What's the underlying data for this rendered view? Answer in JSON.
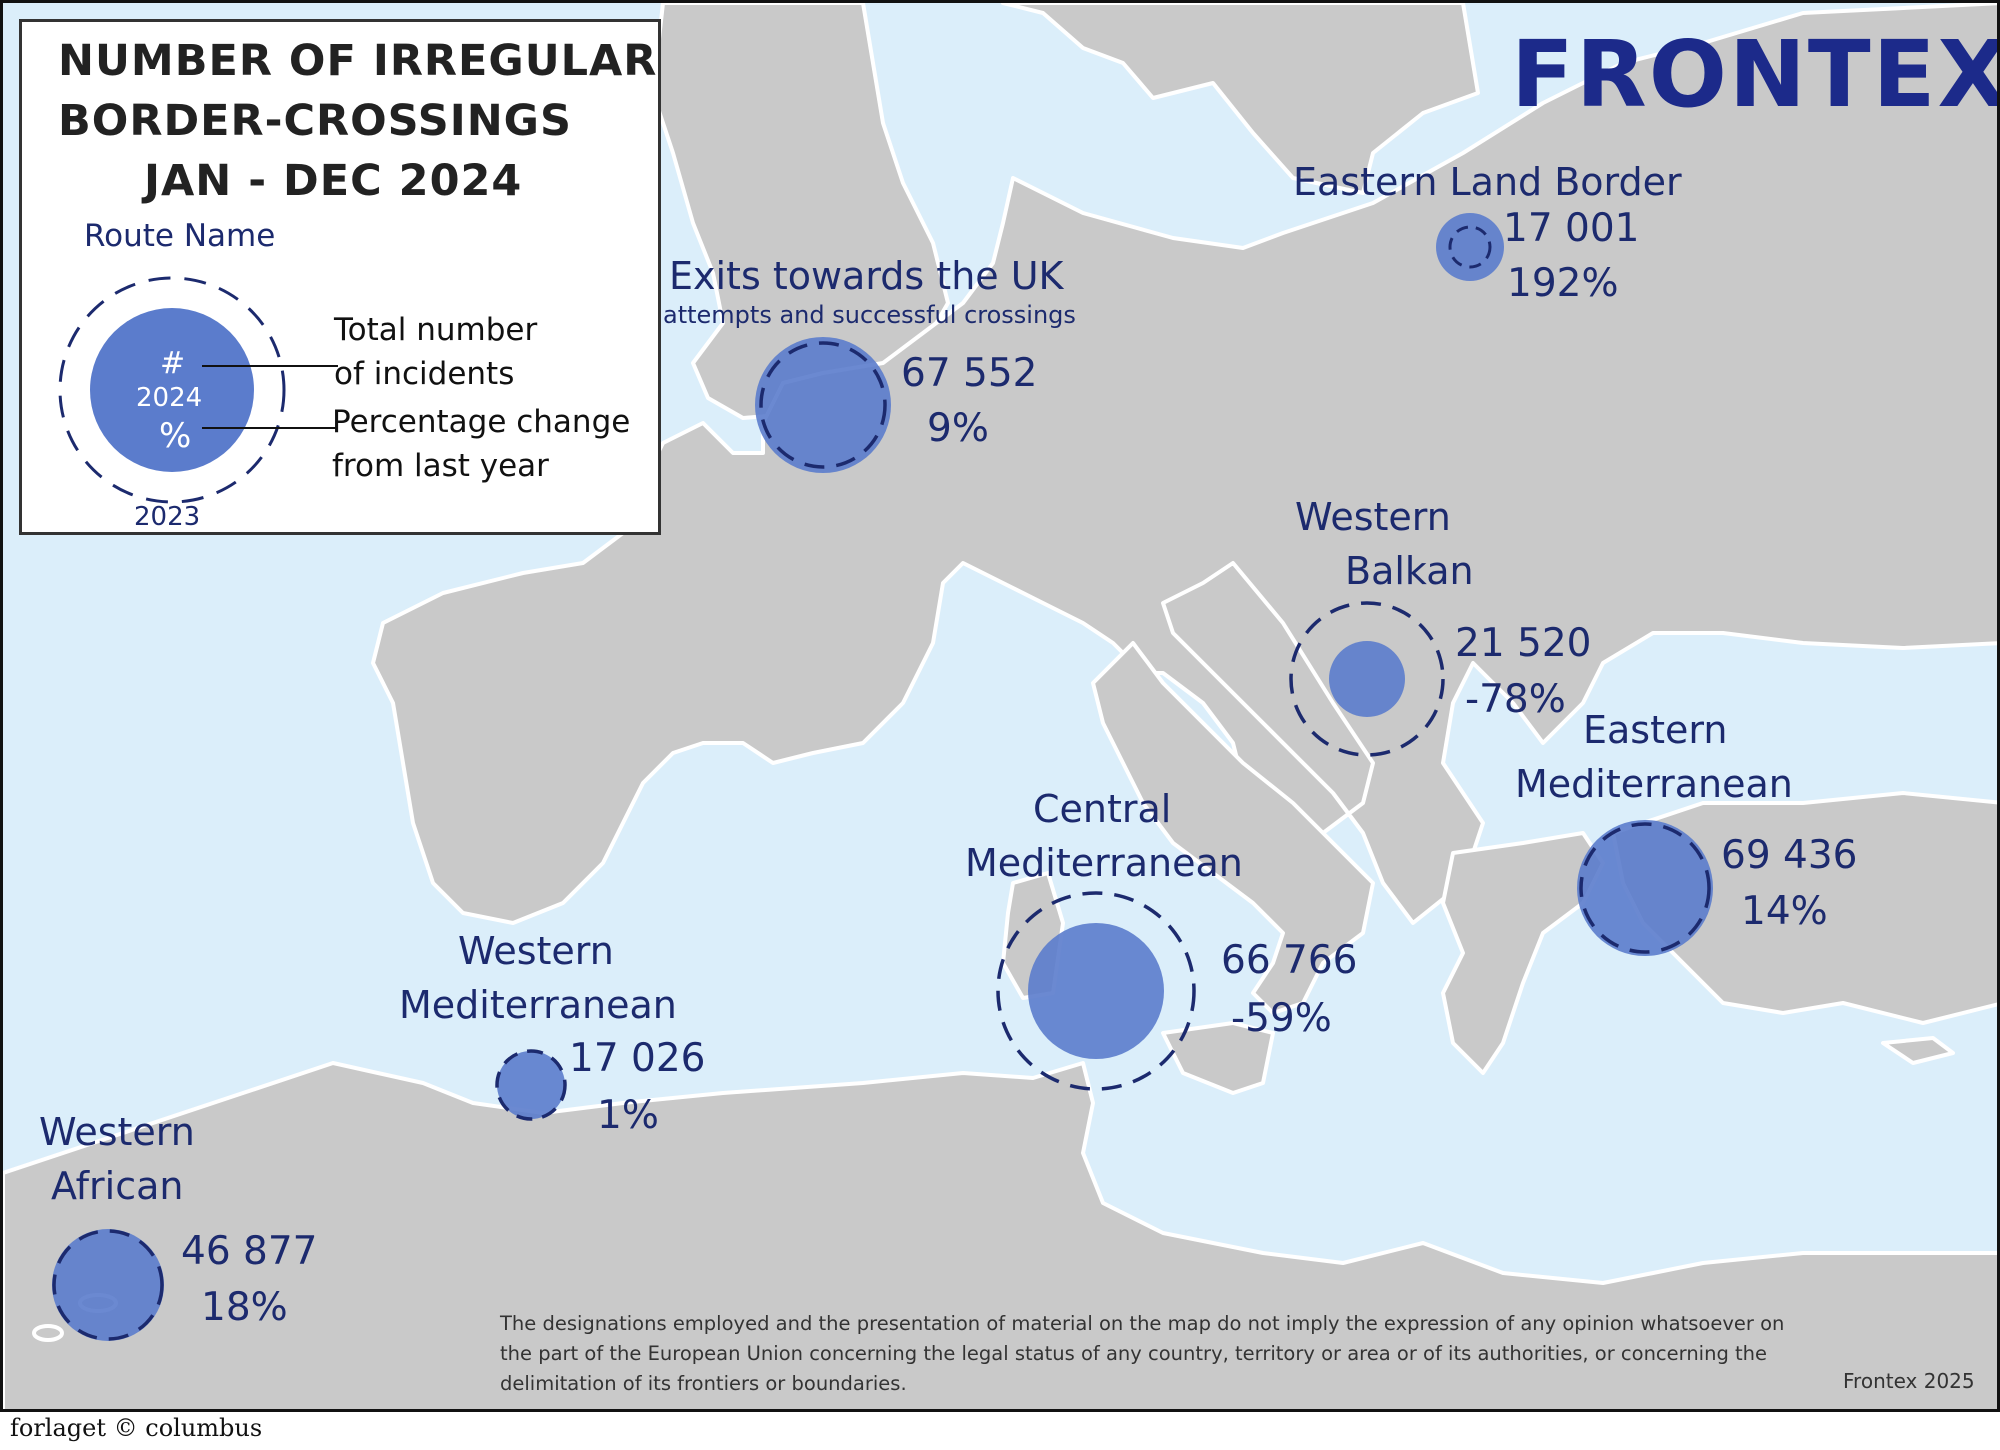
{
  "title": {
    "line1": "NUMBER OF IRREGULAR",
    "line2": "BORDER-CROSSINGS",
    "line3": "JAN - DEC 2024"
  },
  "legend": {
    "route_name": "Route Name",
    "symbol_count": "#",
    "symbol_year": "2024",
    "symbol_pct": "%",
    "prev_year": "2023",
    "count_label_1": "Total number",
    "count_label_2": "of incidents",
    "pct_label_1": "Percentage change",
    "pct_label_2": "from last year"
  },
  "logo": "FRONTEX",
  "routes": {
    "uk": {
      "name": "Exits towards the UK",
      "subtitle": "attempts and successful crossings",
      "value": "67 552",
      "change": "9%"
    },
    "eastern_land": {
      "name": "Eastern Land Border",
      "value": "17 001",
      "change": "192%"
    },
    "western_balkan": {
      "name_1": "Western",
      "name_2": "Balkan",
      "value": "21 520",
      "change": "-78%"
    },
    "eastern_med": {
      "name_1": "Eastern",
      "name_2": "Mediterranean",
      "value": "69 436",
      "change": "14%"
    },
    "central_med": {
      "name_1": "Central",
      "name_2": "Mediterranean",
      "value": "66 766",
      "change": "-59%"
    },
    "western_med": {
      "name_1": "Western",
      "name_2": "Mediterranean",
      "value": "17 026",
      "change": "1%"
    },
    "western_african": {
      "name_1": "Western",
      "name_2": "African",
      "value": "46 877",
      "change": "18%"
    }
  },
  "disclaimer": "The designations employed and the presentation of material on the map do not imply the expression of any opinion whatsoever on the part of the European Union concerning the legal status of any country, territory or area or of its authorities, or concerning the delimitation of its frontiers or boundaries.",
  "credit": "Frontex 2025",
  "publisher": "forlaget © columbus",
  "colors": {
    "sea": "#dbeefa",
    "land": "#c9c9c9",
    "border": "#ffffff",
    "bubble_fill": "#5b7ccc",
    "outline": "#1c2a6e",
    "text": "#1c2a6e"
  }
}
